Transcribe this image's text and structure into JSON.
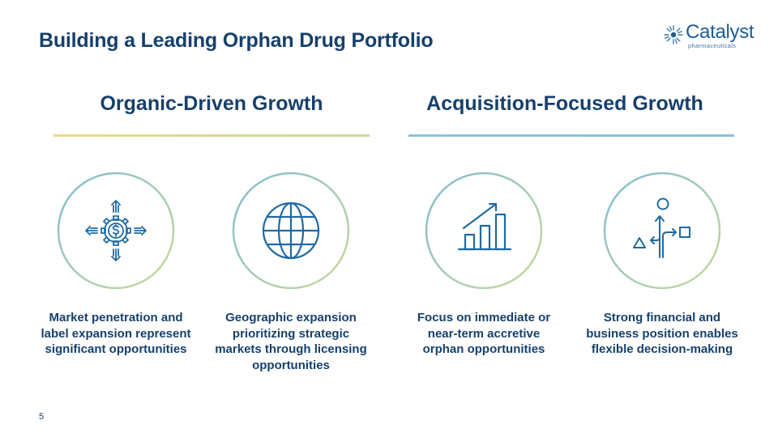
{
  "slide": {
    "title": "Building a Leading Orphan Drug Portfolio",
    "page_number": "5"
  },
  "logo": {
    "name": "Catalyst",
    "tagline": "pharmaceuticals"
  },
  "sections": [
    {
      "heading": "Organic-Driven Growth",
      "rule_color": "#e9dc8c"
    },
    {
      "heading": "Acquisition-Focused Growth",
      "rule_color": "#8fc3d4"
    }
  ],
  "pillars": [
    {
      "icon": "gear-dollar-expansion-icon",
      "caption": "Market penetration and label expansion represent significant opportunities"
    },
    {
      "icon": "globe-icon",
      "caption": "Geographic expansion prioritizing strategic markets through licensing opportunities"
    },
    {
      "icon": "bar-chart-growth-icon",
      "caption": "Focus on immediate or near-term accretive orphan opportunities"
    },
    {
      "icon": "decision-path-icon",
      "caption": "Strong financial and business position enables flexible decision-making"
    }
  ],
  "colors": {
    "navy": "#17406b",
    "icon_blue": "#1f6aa3",
    "ring_blue": "#7fbcd3",
    "ring_green": "#c9da98"
  }
}
